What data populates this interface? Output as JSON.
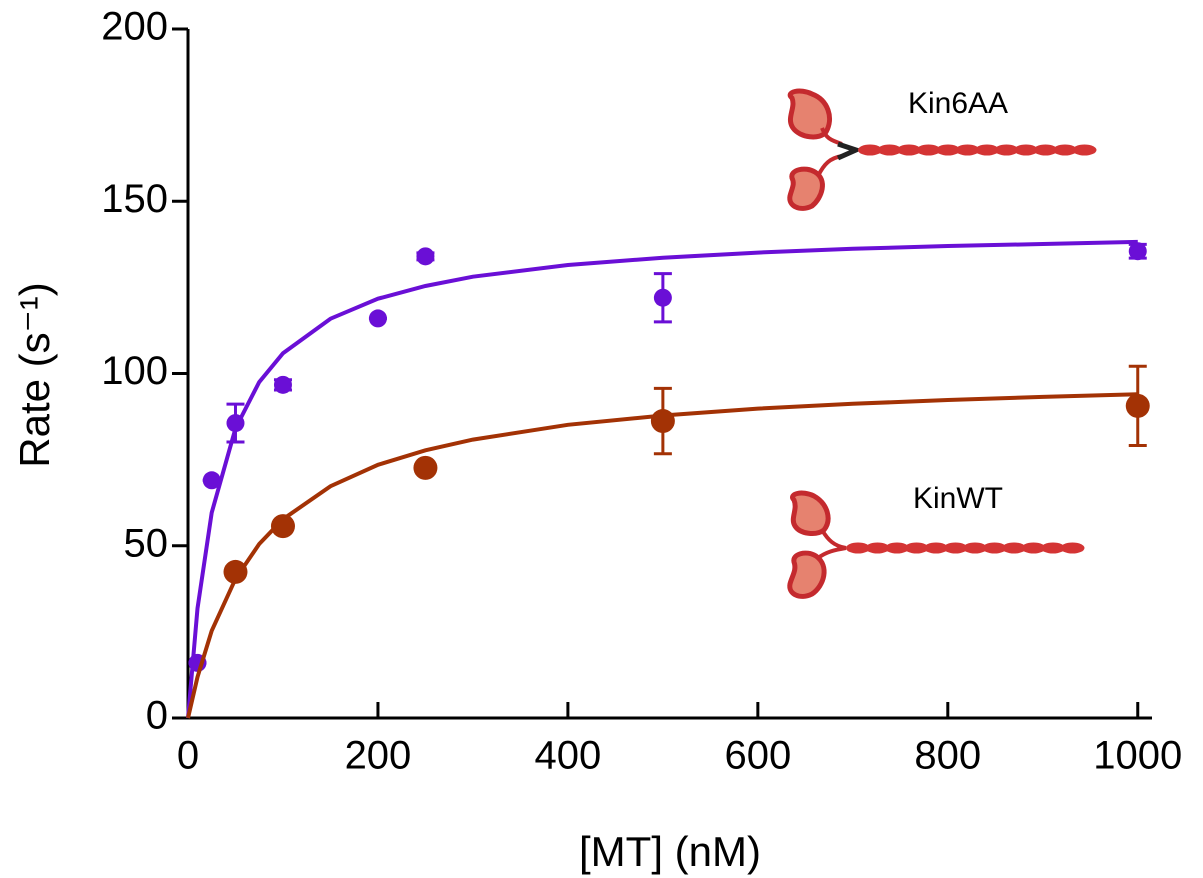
{
  "chart_data": {
    "type": "scatter",
    "xlabel": "[MT] (nM)",
    "ylabel": "Rate (s⁻¹)",
    "xlim": [
      0,
      1015
    ],
    "ylim": [
      0,
      200
    ],
    "xticks": [
      0,
      200,
      400,
      600,
      800,
      1000
    ],
    "yticks": [
      0,
      50,
      100,
      150,
      200
    ],
    "series": [
      {
        "name": "Kin6AA",
        "color": "#6a0fd6",
        "x": [
          10,
          25,
          50,
          100,
          200,
          250,
          500,
          1000
        ],
        "values": [
          16,
          69,
          85.6,
          96.7,
          116,
          134,
          122,
          135.5
        ],
        "errors": [
          0,
          0,
          5.5,
          1.5,
          0,
          1,
          7,
          2
        ],
        "fit": {
          "x": [
            0,
            10,
            25,
            50,
            75,
            100,
            150,
            200,
            250,
            300,
            400,
            500,
            600,
            700,
            800,
            900,
            1000
          ],
          "values": [
            0,
            31.8,
            59.6,
            84.1,
            97.5,
            105.9,
            115.9,
            121.7,
            125.4,
            128.1,
            131.5,
            133.6,
            135.1,
            136.2,
            137.0,
            137.6,
            138.2
          ]
        }
      },
      {
        "name": "KinWT",
        "color": "#a33205",
        "x": [
          50,
          100,
          250,
          500,
          1000
        ],
        "values": [
          42.4,
          55.7,
          72.6,
          86.2,
          90.6
        ],
        "errors": [
          0,
          0,
          1.5,
          9.5,
          11.5
        ],
        "fit": {
          "x": [
            0,
            10,
            25,
            50,
            75,
            100,
            150,
            200,
            250,
            300,
            400,
            500,
            600,
            700,
            800,
            900,
            1000
          ],
          "values": [
            0,
            11.9,
            25.3,
            40.4,
            50.5,
            57.7,
            67.3,
            73.5,
            77.7,
            80.8,
            85.1,
            87.8,
            89.8,
            91.2,
            92.3,
            93.2,
            94.0
          ]
        }
      }
    ]
  }
}
